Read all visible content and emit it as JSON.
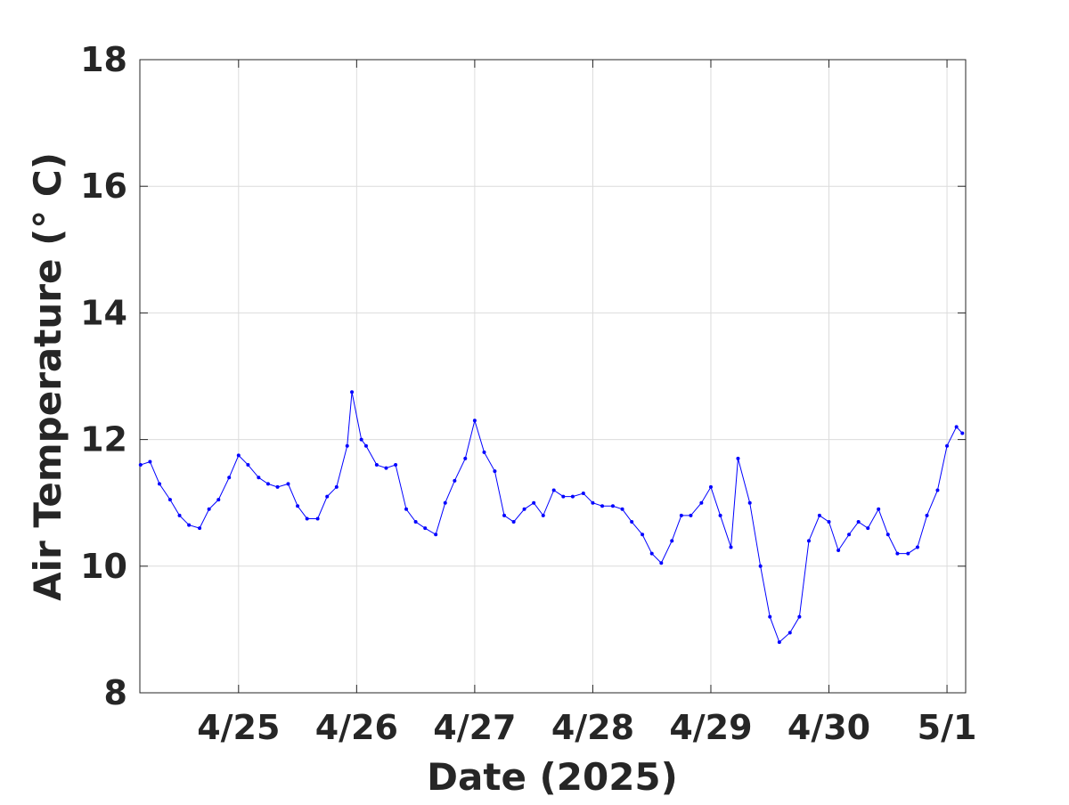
{
  "chart_data": {
    "type": "line",
    "x_label": "Date (2025)",
    "y_label": "Air Temperature (° C)",
    "xlim": [
      24.164,
      31.158
    ],
    "xticks": [
      {
        "value": 25,
        "label": "4/25"
      },
      {
        "value": 26,
        "label": "4/26"
      },
      {
        "value": 27,
        "label": "4/27"
      },
      {
        "value": 28,
        "label": "4/28"
      },
      {
        "value": 29,
        "label": "4/29"
      },
      {
        "value": 30,
        "label": "4/30"
      },
      {
        "value": 31,
        "label": "5/1"
      }
    ],
    "ylim": [
      8,
      18
    ],
    "yticks": [
      8,
      10,
      12,
      14,
      16,
      18
    ],
    "grid": true,
    "series": [
      {
        "color": "#0000ff",
        "x": [
          24.17,
          24.25,
          24.33,
          24.42,
          24.5,
          24.58,
          24.67,
          24.75,
          24.83,
          24.92,
          25.0,
          25.08,
          25.17,
          25.25,
          25.33,
          25.42,
          25.5,
          25.58,
          25.67,
          25.75,
          25.83,
          25.92,
          25.96,
          26.04,
          26.08,
          26.17,
          26.25,
          26.33,
          26.42,
          26.5,
          26.58,
          26.67,
          26.75,
          26.83,
          26.92,
          27.0,
          27.08,
          27.17,
          27.25,
          27.33,
          27.42,
          27.5,
          27.58,
          27.67,
          27.75,
          27.83,
          27.92,
          28.0,
          28.08,
          28.17,
          28.25,
          28.33,
          28.42,
          28.5,
          28.58,
          28.67,
          28.75,
          28.83,
          28.92,
          29.0,
          29.08,
          29.17,
          29.23,
          29.33,
          29.42,
          29.5,
          29.58,
          29.67,
          29.75,
          29.83,
          29.92,
          30.0,
          30.08,
          30.17,
          30.25,
          30.33,
          30.42,
          30.5,
          30.58,
          30.67,
          30.75,
          30.83,
          30.92,
          31.0,
          31.08,
          31.13
        ],
        "values": [
          11.6,
          11.65,
          11.3,
          11.05,
          10.8,
          10.65,
          10.6,
          10.9,
          11.05,
          11.4,
          11.75,
          11.6,
          11.4,
          11.3,
          11.25,
          11.3,
          10.95,
          10.75,
          10.75,
          11.1,
          11.25,
          11.9,
          12.75,
          12.0,
          11.9,
          11.6,
          11.55,
          11.6,
          10.9,
          10.7,
          10.6,
          10.5,
          11.0,
          11.35,
          11.7,
          12.3,
          11.8,
          11.5,
          10.8,
          10.7,
          10.9,
          11.0,
          10.8,
          11.2,
          11.1,
          11.1,
          11.15,
          11.0,
          10.95,
          10.95,
          10.9,
          10.7,
          10.5,
          10.2,
          10.05,
          10.4,
          10.8,
          10.8,
          11.0,
          11.25,
          10.8,
          10.3,
          11.7,
          11.0,
          10.0,
          9.2,
          8.8,
          8.95,
          9.2,
          10.4,
          10.8,
          10.7,
          10.25,
          10.5,
          10.7,
          10.6,
          10.9,
          10.5,
          10.2,
          10.2,
          10.3,
          10.8,
          11.2,
          11.9,
          12.2,
          12.1
        ]
      }
    ]
  }
}
